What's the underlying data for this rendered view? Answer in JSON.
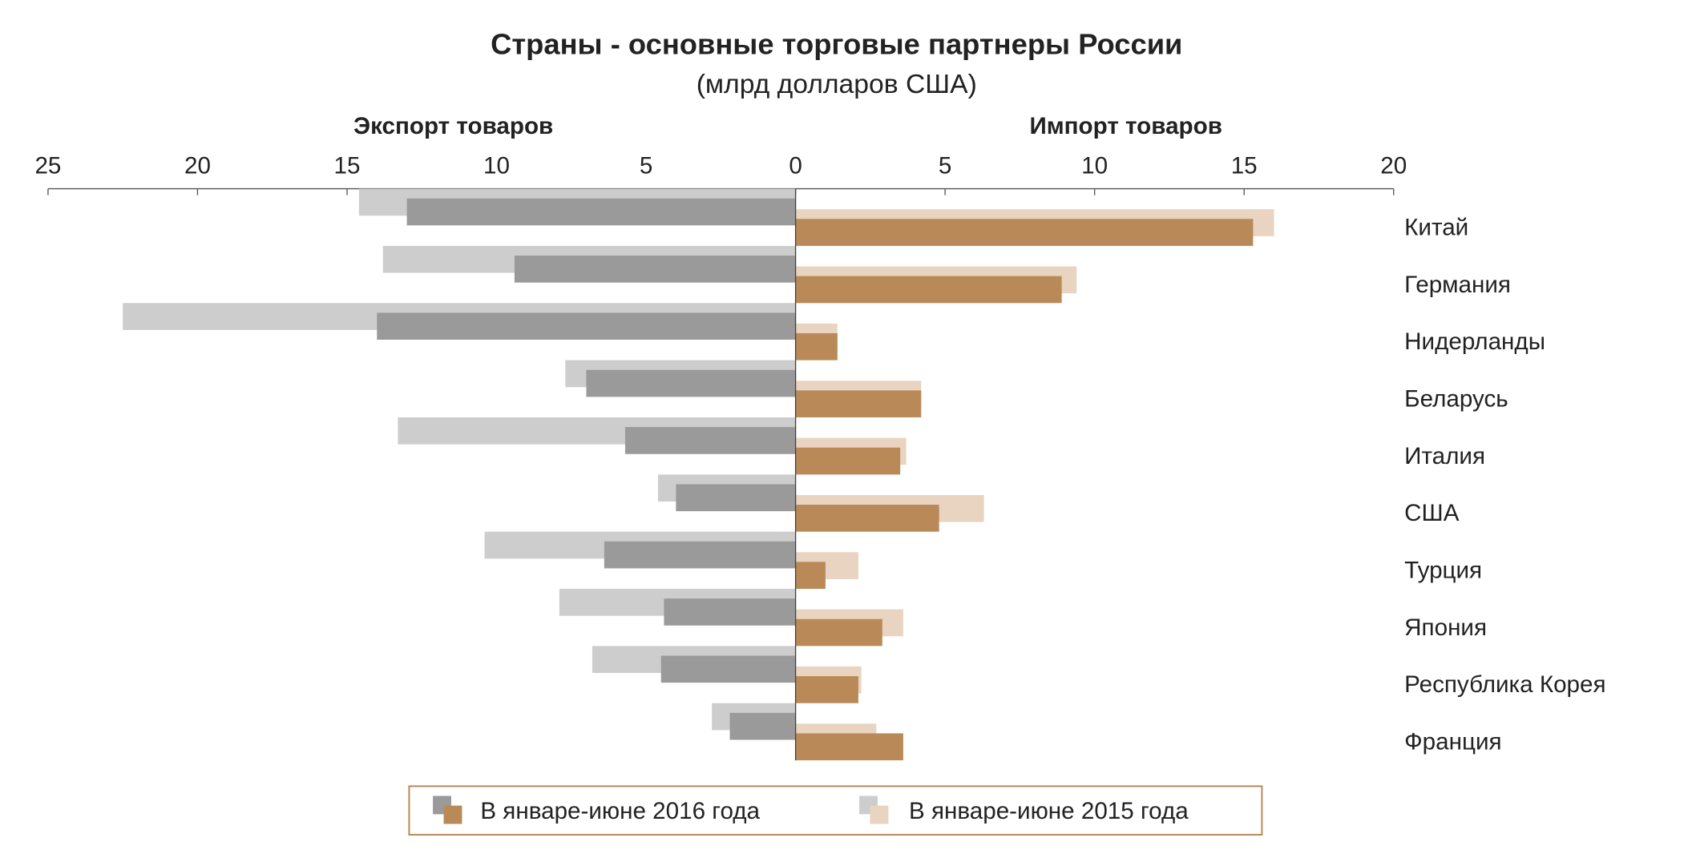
{
  "chart_data": {
    "type": "bar",
    "orientation": "horizontal-diverging",
    "title": "Страны - основные торговые партнеры России",
    "subtitle": "(млрд долларов США)",
    "left_label": "Экспорт товаров",
    "right_label": "Импорт товаров",
    "left_xlim": [
      25,
      0
    ],
    "right_xlim": [
      0,
      20
    ],
    "left_ticks": [
      "25",
      "20",
      "15",
      "10",
      "5",
      "0"
    ],
    "right_ticks": [
      "5",
      "10",
      "15",
      "20"
    ],
    "grid": false,
    "legend_position": "bottom",
    "categories": [
      "Китай",
      "Германия",
      "Нидерланды",
      "Беларусь",
      "Италия",
      "США",
      "Турция",
      "Япония",
      "Республика Корея",
      "Франция"
    ],
    "series": [
      {
        "name": "В январе-июне 2016 года",
        "side": "export",
        "color": "#9a9a9a",
        "values": [
          13.0,
          9.4,
          14.0,
          7.0,
          5.7,
          4.0,
          6.4,
          4.4,
          4.5,
          2.2
        ]
      },
      {
        "name": "В январе-июне 2015 года",
        "side": "export",
        "color": "#cdcdcd",
        "values": [
          14.6,
          13.8,
          22.5,
          7.7,
          13.3,
          4.6,
          10.4,
          7.9,
          6.8,
          2.8
        ]
      },
      {
        "name": "В январе-июне 2016 года",
        "side": "import",
        "color": "#b98a58",
        "values": [
          15.3,
          8.9,
          1.4,
          4.2,
          3.5,
          4.8,
          1.0,
          2.9,
          2.1,
          3.6
        ]
      },
      {
        "name": "В январе-июне 2015 года",
        "side": "import",
        "color": "#e9d4c1",
        "values": [
          16.0,
          9.4,
          1.4,
          4.2,
          3.7,
          6.3,
          2.1,
          3.6,
          2.2,
          2.7
        ]
      }
    ],
    "legend": [
      "В январе-июне 2016 года",
      "В январе-июне 2015 года"
    ],
    "legend_border_color": "#b98a58"
  }
}
